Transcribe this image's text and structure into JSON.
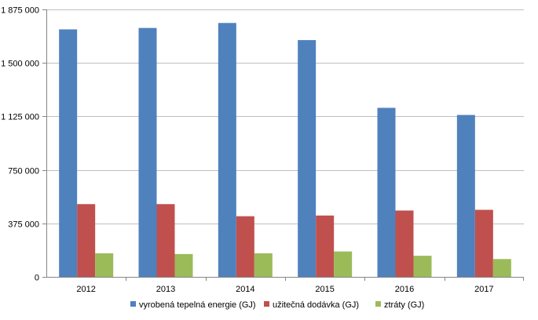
{
  "chart_data": {
    "type": "bar",
    "categories": [
      "2012",
      "2013",
      "2014",
      "2015",
      "2016",
      "2017"
    ],
    "ylim": [
      0,
      1875000
    ],
    "yticks": [
      0,
      375000,
      750000,
      1125000,
      1500000,
      1875000
    ],
    "ytick_labels": [
      "0",
      "375 000",
      "750 000",
      "1 125 000",
      "1 500 000",
      "1 875 000"
    ],
    "grid": true,
    "legend_position": "bottom",
    "series": [
      {
        "name": "vyrobená tepelná energie (GJ)",
        "color": "#4f81bd",
        "values": [
          1735000,
          1745000,
          1780000,
          1660000,
          1185000,
          1135000
        ]
      },
      {
        "name": "užitečná dodávka (GJ)",
        "color": "#c0504d",
        "values": [
          510000,
          510000,
          425000,
          430000,
          465000,
          470000
        ]
      },
      {
        "name": "ztráty (GJ)",
        "color": "#9bbb59",
        "values": [
          165000,
          160000,
          165000,
          178000,
          148000,
          125000
        ]
      }
    ]
  }
}
